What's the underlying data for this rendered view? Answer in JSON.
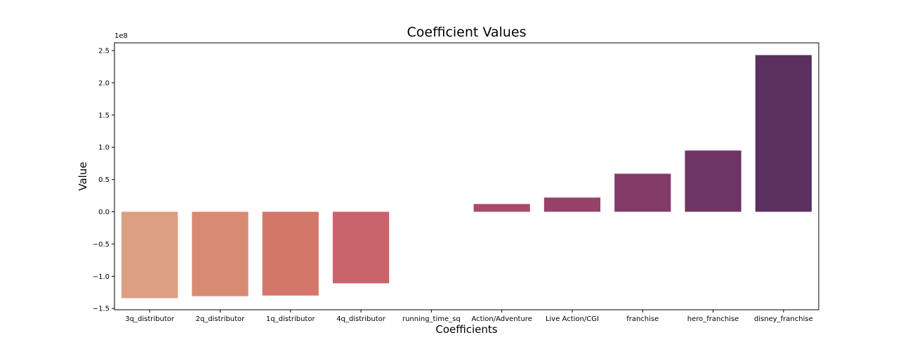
{
  "chart_data": {
    "type": "bar",
    "title": "Coefficient Values",
    "xlabel": "Coefficients",
    "ylabel": "Value",
    "y_offset_label": "1e8",
    "ylim": [
      -1.52,
      2.62
    ],
    "yticks": [
      -1.5,
      -1.0,
      -0.5,
      0.0,
      0.5,
      1.0,
      1.5,
      2.0,
      2.5
    ],
    "ytick_labels": [
      "−1.5",
      "−1.0",
      "−0.5",
      "0.0",
      "0.5",
      "1.0",
      "1.5",
      "2.0",
      "2.5"
    ],
    "value_scale": "x 1e8",
    "categories": [
      "3q_distributor",
      "2q_distributor",
      "1q_distributor",
      "4q_distributor",
      "running_time_sq",
      "Action/Adventure",
      "Live Action/CGI",
      "franchise",
      "hero_franchise",
      "disney_franchise"
    ],
    "values": [
      -1.34,
      -1.31,
      -1.3,
      -1.11,
      0.0,
      0.12,
      0.22,
      0.59,
      0.95,
      2.43
    ],
    "colors": [
      "#dc9f81",
      "#d88a73",
      "#d3776b",
      "#cb646a",
      "#be546a",
      "#a74a6a",
      "#964268",
      "#833b68",
      "#6f3466",
      "#5b305e"
    ],
    "grid": false,
    "legend": "none"
  }
}
